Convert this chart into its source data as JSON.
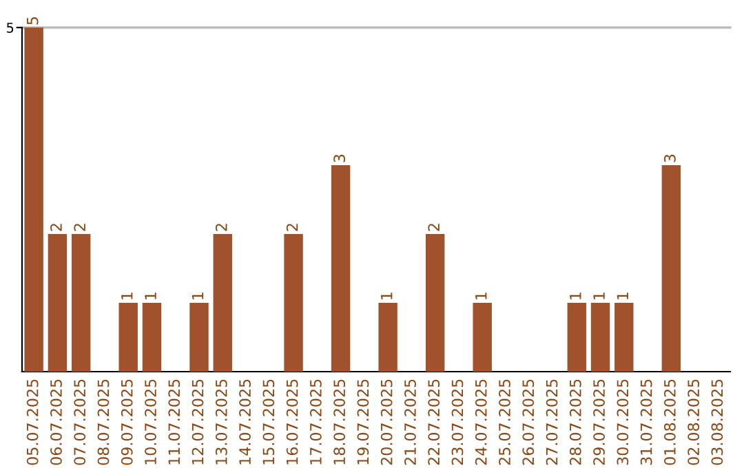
{
  "chart_data": {
    "type": "bar",
    "categories": [
      "05.07.2025",
      "06.07.2025",
      "07.07.2025",
      "08.07.2025",
      "09.07.2025",
      "10.07.2025",
      "11.07.2025",
      "12.07.2025",
      "13.07.2025",
      "14.07.2025",
      "15.07.2025",
      "16.07.2025",
      "17.07.2025",
      "18.07.2025",
      "19.07.2025",
      "20.07.2025",
      "21.07.2025",
      "22.07.2025",
      "23.07.2025",
      "24.07.2025",
      "25.07.2025",
      "26.07.2025",
      "27.07.2025",
      "28.07.2025",
      "29.07.2025",
      "30.07.2025",
      "31.07.2025",
      "01.08.2025",
      "02.08.2025",
      "03.08.2025"
    ],
    "values": [
      5,
      2,
      2,
      0,
      1,
      1,
      0,
      1,
      2,
      0,
      0,
      2,
      0,
      3,
      0,
      1,
      0,
      2,
      0,
      1,
      0,
      0,
      0,
      1,
      1,
      1,
      0,
      3,
      0,
      0
    ],
    "value_labels": [
      "5",
      "2",
      "2",
      null,
      "1",
      "1",
      null,
      "1",
      "2",
      null,
      null,
      "2",
      null,
      "3",
      null,
      "1",
      null,
      "2",
      null,
      "1",
      null,
      null,
      null,
      "1",
      "1",
      "1",
      null,
      "3",
      null,
      null
    ],
    "color": "#a0522d",
    "ylim": [
      0,
      5
    ],
    "yticks": [
      5
    ],
    "grid": "y"
  }
}
